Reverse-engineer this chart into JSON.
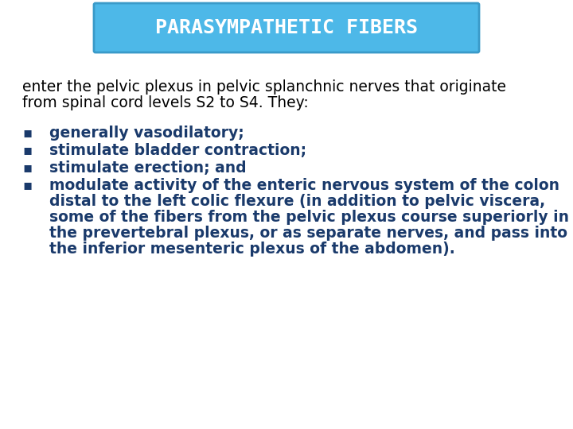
{
  "title": "PARASYMPATHETIC FIBERS",
  "title_bg_color": "#4db8e8",
  "title_border_color": "#3a9ac9",
  "title_text_color": "#ffffff",
  "title_font_size": 18,
  "background_color": "#ffffff",
  "intro_text_line1": "enter the pelvic plexus in pelvic splanchnic nerves that originate",
  "intro_text_line2": "from spinal cord levels S2 to S4. They:",
  "intro_text_color": "#000000",
  "intro_font_size": 13.5,
  "bullet_color": "#1a3a6b",
  "bullet_font_size": 13.5,
  "bullet1": "generally vasodilatory;",
  "bullet2": "stimulate bladder contraction;",
  "bullet3": "stimulate erection; and",
  "bullet4_line1": "modulate activity of the enteric nervous system of the colon",
  "bullet4_line2": "distal to the left colic flexure (in addition to pelvic viscera,",
  "bullet4_line3": "some of the fibers from the pelvic plexus course superiorly in",
  "bullet4_line4": "the prevertebral plexus, or as separate nerves, and pass into",
  "bullet4_line5": "the inferior mesenteric plexus of the abdomen).",
  "fig_width": 7.2,
  "fig_height": 5.4,
  "dpi": 100
}
